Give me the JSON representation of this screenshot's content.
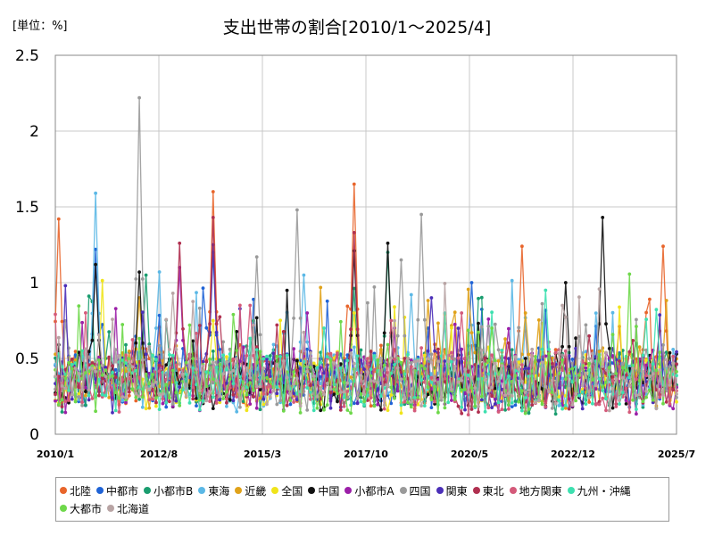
{
  "chart_data": {
    "type": "line",
    "title": "支出世帯の割合[2010/1～2025/4]",
    "unit_label": "[単位：%]",
    "xlabel": "",
    "ylabel": "",
    "ylim": [
      0,
      2.5
    ],
    "y_ticks": [
      "0",
      "0.5",
      "1",
      "1.5",
      "2",
      "2.5"
    ],
    "x_ticks": [
      "2010/1",
      "2012/8",
      "2015/3",
      "2017/10",
      "2020/5",
      "2022/12",
      "2025/7"
    ],
    "grid": true,
    "legend_position": "bottom",
    "x_start": "2010/1",
    "x_end": "2025/7",
    "months": 186,
    "series": [
      {
        "name": "北陸",
        "color": "#e8652b",
        "base": 0.38,
        "peaks": [
          [
            1,
            1.42
          ],
          [
            89,
            1.65
          ],
          [
            139,
            1.24
          ],
          [
            181,
            1.24
          ],
          [
            47,
            1.6
          ]
        ]
      },
      {
        "name": "中都市",
        "color": "#1f63d6",
        "base": 0.36,
        "peaks": [
          [
            12,
            1.22
          ],
          [
            47,
            1.2
          ],
          [
            124,
            1.0
          ]
        ]
      },
      {
        "name": "小都市B",
        "color": "#1a9d6f",
        "base": 0.35,
        "peaks": [
          [
            27,
            1.05
          ],
          [
            99,
            1.2
          ],
          [
            173,
            0.6
          ]
        ]
      },
      {
        "name": "東海",
        "color": "#5bb8e6",
        "base": 0.37,
        "peaks": [
          [
            12,
            1.59
          ],
          [
            30,
            0.7
          ],
          [
            74,
            1.05
          ]
        ]
      },
      {
        "name": "近畿",
        "color": "#e0a21a",
        "base": 0.38,
        "peaks": [
          [
            25,
            0.9
          ],
          [
            140,
            0.8
          ]
        ]
      },
      {
        "name": "全国",
        "color": "#f0e41a",
        "base": 0.36,
        "peaks": [
          [
            47,
            0.75
          ],
          [
            89,
            0.8
          ]
        ]
      },
      {
        "name": "中国",
        "color": "#111111",
        "base": 0.35,
        "peaks": [
          [
            12,
            1.12
          ],
          [
            25,
            1.07
          ],
          [
            89,
            1.21
          ],
          [
            99,
            1.26
          ],
          [
            152,
            1.0
          ],
          [
            163,
            1.43
          ]
        ]
      },
      {
        "name": "小都市A",
        "color": "#9b1fa8",
        "base": 0.36,
        "peaks": [
          [
            37,
            1.1
          ],
          [
            75,
            0.8
          ]
        ]
      },
      {
        "name": "四国",
        "color": "#9a9a9a",
        "base": 0.38,
        "peaks": [
          [
            25,
            2.22
          ],
          [
            72,
            1.48
          ],
          [
            109,
            1.45
          ],
          [
            60,
            1.17
          ],
          [
            103,
            1.15
          ]
        ]
      },
      {
        "name": "関東",
        "color": "#4b2fb8",
        "base": 0.36,
        "peaks": [
          [
            47,
            1.25
          ],
          [
            112,
            0.9
          ]
        ]
      },
      {
        "name": "東北",
        "color": "#b03050",
        "base": 0.35,
        "peaks": [
          [
            37,
            1.26
          ],
          [
            89,
            1.33
          ],
          [
            47,
            1.43
          ]
        ]
      },
      {
        "name": "地方関東",
        "color": "#d45a7a",
        "base": 0.34,
        "peaks": [
          [
            58,
            0.85
          ],
          [
            121,
            0.8
          ]
        ]
      },
      {
        "name": "九州・沖縄",
        "color": "#3ee0b0",
        "base": 0.35,
        "peaks": [
          [
            146,
            0.95
          ],
          [
            80,
            0.7
          ]
        ]
      },
      {
        "name": "大都市",
        "color": "#6ed84a",
        "base": 0.34,
        "peaks": [
          [
            40,
            0.72
          ],
          [
            130,
            0.7
          ]
        ]
      },
      {
        "name": "北海道",
        "color": "#b8a4a4",
        "base": 0.36,
        "peaks": [
          [
            35,
            0.93
          ],
          [
            151,
            0.85
          ]
        ]
      }
    ]
  }
}
